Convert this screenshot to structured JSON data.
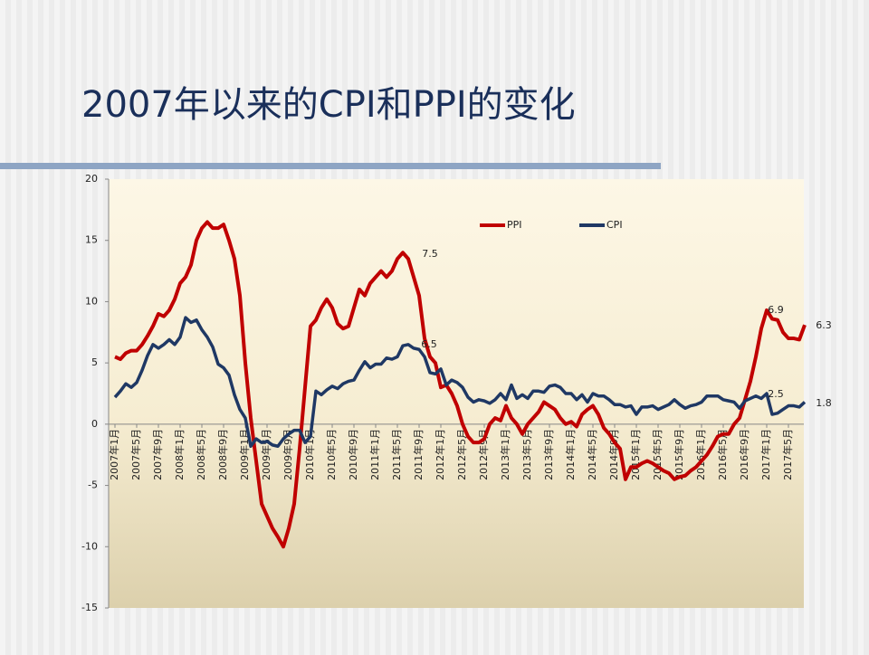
{
  "chart_data": {
    "type": "line",
    "title": "2007年以来的CPI和PPI的变化",
    "categories": [
      "2007年1月",
      null,
      null,
      null,
      "2007年5月",
      null,
      null,
      null,
      "2007年9月",
      null,
      null,
      null,
      "2008年1月",
      null,
      null,
      null,
      "2008年5月",
      null,
      null,
      null,
      "2008年9月",
      null,
      null,
      null,
      "2009年1月",
      null,
      null,
      null,
      "2009年5月",
      null,
      null,
      null,
      "2009年9月",
      null,
      null,
      null,
      "2010年1月",
      null,
      null,
      null,
      "2010年5月",
      null,
      null,
      null,
      "2010年9月",
      null,
      null,
      null,
      "2011年1月",
      null,
      null,
      null,
      "2011年5月",
      null,
      null,
      null,
      "2011年9月",
      null,
      null,
      null,
      "2012年1月",
      null,
      null,
      null,
      "2012年5月",
      null,
      null,
      null,
      "2012年9月",
      null,
      null,
      null,
      "2013年1月",
      null,
      null,
      null,
      "2013年5月",
      null,
      null,
      null,
      "2013年9月",
      null,
      null,
      null,
      "2014年1月",
      null,
      null,
      null,
      "2014年5月",
      null,
      null,
      null,
      "2014年9月",
      null,
      null,
      null,
      "2015年1月",
      null,
      null,
      null,
      "2015年5月",
      null,
      null,
      null,
      "2015年9月",
      null,
      null,
      null,
      "2016年1月",
      null,
      null,
      null,
      "2016年5月",
      null,
      null,
      null,
      "2016年9月",
      null,
      null,
      null,
      "2017年1月",
      null,
      null,
      null,
      "2017年5月",
      null,
      null,
      null
    ],
    "series": [
      {
        "name": "PPI",
        "color": "#c00000",
        "values": [
          5.5,
          5.3,
          5.8,
          6.0,
          6.0,
          6.5,
          7.2,
          8.0,
          9.0,
          8.8,
          9.3,
          10.2,
          11.5,
          12.0,
          13.0,
          15.0,
          16.0,
          16.5,
          16.0,
          16.0,
          16.3,
          15.0,
          13.5,
          10.5,
          5.0,
          0.5,
          -3.0,
          -6.5,
          -7.5,
          -8.5,
          -9.2,
          -10.0,
          -8.5,
          -6.5,
          -2.0,
          3.0,
          8.0,
          8.5,
          9.5,
          10.2,
          9.5,
          8.2,
          7.8,
          8.0,
          9.5,
          11.0,
          10.5,
          11.5,
          12.0,
          12.5,
          12.0,
          12.5,
          13.5,
          14.0,
          13.5,
          12.0,
          10.5,
          7.0,
          5.5,
          5.0,
          3.0,
          3.2,
          2.5,
          1.5,
          0.0,
          -1.0,
          -1.5,
          -1.5,
          -1.2,
          0.0,
          0.5,
          0.3,
          1.5,
          0.5,
          0.0,
          -0.8,
          0.0,
          0.5,
          1.0,
          1.8,
          1.5,
          1.2,
          0.5,
          0.0,
          0.2,
          -0.2,
          0.8,
          1.2,
          1.5,
          0.8,
          -0.3,
          -0.8,
          -1.5,
          -2.0,
          -4.5,
          -3.5,
          -3.5,
          -3.2,
          -3.0,
          -3.2,
          -3.5,
          -3.8,
          -4.0,
          -4.5,
          -4.3,
          -4.2,
          -3.8,
          -3.5,
          -3.0,
          -2.5,
          -1.8,
          -1.0,
          -0.8,
          -0.8,
          0.0,
          0.5,
          2.0,
          3.5,
          5.5,
          7.8,
          9.3,
          8.6,
          8.5,
          7.5,
          7.0,
          7.0,
          6.9,
          8.1
        ]
      },
      {
        "name": "CPI",
        "color": "#1f3864",
        "values": [
          2.2,
          2.7,
          3.3,
          3.0,
          3.4,
          4.4,
          5.6,
          6.5,
          6.2,
          6.5,
          6.9,
          6.5,
          7.1,
          8.7,
          8.3,
          8.5,
          7.7,
          7.1,
          6.3,
          4.9,
          4.6,
          4.0,
          2.4,
          1.2,
          0.5,
          -1.8,
          -1.2,
          -1.5,
          -1.4,
          -1.7,
          -1.8,
          -1.2,
          -0.8,
          -0.5,
          -0.5,
          -1.5,
          -1.0,
          2.7,
          2.4,
          2.8,
          3.1,
          2.9,
          3.3,
          3.5,
          3.6,
          4.4,
          5.1,
          4.6,
          4.9,
          4.9,
          5.4,
          5.3,
          5.5,
          6.4,
          6.5,
          6.2,
          6.1,
          5.5,
          4.2,
          4.1,
          4.5,
          3.2,
          3.6,
          3.4,
          3.0,
          2.2,
          1.8,
          2.0,
          1.9,
          1.7,
          2.0,
          2.5,
          2.0,
          3.2,
          2.1,
          2.4,
          2.1,
          2.7,
          2.7,
          2.6,
          3.1,
          3.2,
          3.0,
          2.5,
          2.5,
          2.0,
          2.4,
          1.8,
          2.5,
          2.3,
          2.3,
          2.0,
          1.6,
          1.6,
          1.4,
          1.5,
          0.8,
          1.4,
          1.4,
          1.5,
          1.2,
          1.4,
          1.6,
          2.0,
          1.6,
          1.3,
          1.5,
          1.6,
          1.8,
          2.3,
          2.3,
          2.3,
          2.0,
          1.9,
          1.8,
          1.3,
          1.9,
          2.1,
          2.3,
          2.1,
          2.5,
          0.8,
          0.9,
          1.2,
          1.5,
          1.5,
          1.4,
          1.8
        ]
      }
    ],
    "annotations": [
      "7.5",
      "6.5",
      "6.9",
      "6.3",
      "2.5",
      "1.8"
    ],
    "ylim": [
      -15,
      20
    ],
    "yticks": [
      -15,
      -10,
      -5,
      0,
      5,
      10,
      15,
      20
    ],
    "legend": "top-right"
  }
}
